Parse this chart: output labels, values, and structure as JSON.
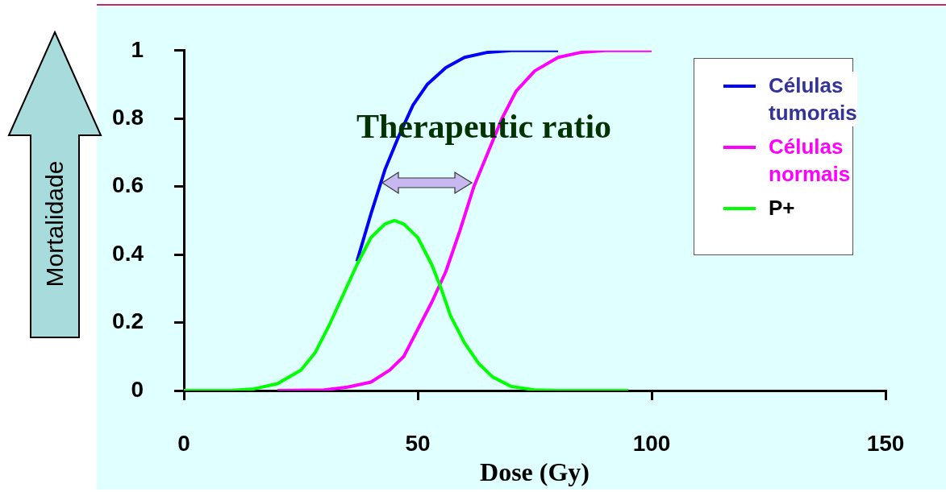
{
  "chart_data": {
    "type": "line",
    "xlabel": "Dose (Gy)",
    "ylabel": "Mortalidade",
    "annotations": [
      "Therapeutic ratio"
    ],
    "xlim": [
      0,
      150
    ],
    "xticks": [
      0,
      50,
      100,
      150
    ],
    "ylim": [
      0,
      1
    ],
    "yticks": [
      0,
      0.2,
      0.4,
      0.6,
      0.8,
      1
    ],
    "legend": "top right",
    "marker": "none",
    "line_style": "solid",
    "series": [
      {
        "name": "Células tumorais",
        "color": "#0000ff",
        "x": [
          37,
          40,
          43,
          46,
          49,
          52,
          56,
          60,
          65,
          70,
          80
        ],
        "values": [
          0.38,
          0.52,
          0.65,
          0.75,
          0.84,
          0.9,
          0.95,
          0.98,
          0.995,
          1,
          1
        ]
      },
      {
        "name": "Células normais",
        "color": "#ff00ff",
        "x": [
          20,
          30,
          35,
          40,
          44,
          47,
          50,
          53,
          56,
          59,
          62,
          65,
          68,
          71,
          75,
          80,
          85,
          90,
          100
        ],
        "values": [
          0,
          0.002,
          0.01,
          0.025,
          0.06,
          0.1,
          0.18,
          0.26,
          0.35,
          0.47,
          0.6,
          0.7,
          0.8,
          0.88,
          0.94,
          0.98,
          0.995,
          1,
          1
        ]
      },
      {
        "name": "P+",
        "color": "#00ff00",
        "x": [
          0,
          10,
          15,
          20,
          25,
          28,
          31,
          34,
          37,
          40,
          43,
          45,
          47,
          50,
          53,
          55,
          57,
          60,
          63,
          66,
          70,
          75,
          80,
          95
        ],
        "values": [
          0,
          0,
          0.005,
          0.02,
          0.06,
          0.11,
          0.19,
          0.28,
          0.37,
          0.45,
          0.49,
          0.5,
          0.49,
          0.45,
          0.37,
          0.3,
          0.22,
          0.14,
          0.08,
          0.04,
          0.012,
          0.002,
          0,
          0
        ]
      }
    ]
  }
}
